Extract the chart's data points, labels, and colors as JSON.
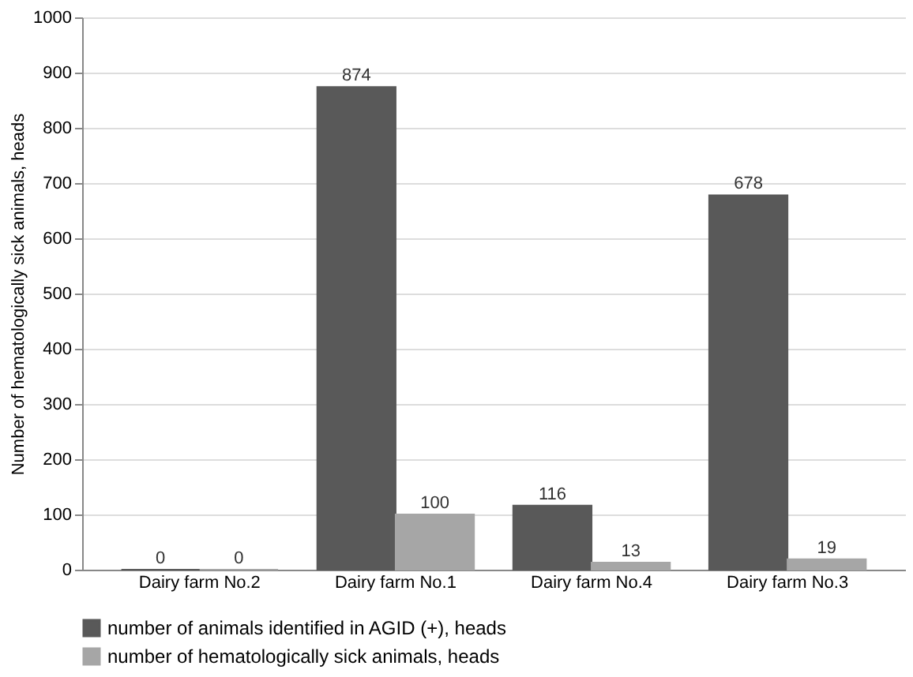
{
  "chart_data": {
    "type": "bar",
    "ylabel": "Number  of hematologically sick animals, heads",
    "categories": [
      "Dairy farm No.2",
      "Dairy farm No.1",
      "Dairy farm No.4",
      "Dairy farm No.3"
    ],
    "series": [
      {
        "name": "number of animals identified in AGID (+), heads",
        "color": "#595959",
        "values": [
          0,
          874,
          116,
          678
        ]
      },
      {
        "name": "number of hematologically sick animals, heads",
        "color": "#a6a6a6",
        "values": [
          0,
          100,
          13,
          19
        ]
      }
    ],
    "ylim": [
      0,
      1000
    ],
    "yticks": [
      0,
      100,
      200,
      300,
      400,
      500,
      600,
      700,
      800,
      900,
      1000
    ],
    "grid": "y",
    "legend": "bottom",
    "data_labels": true
  }
}
